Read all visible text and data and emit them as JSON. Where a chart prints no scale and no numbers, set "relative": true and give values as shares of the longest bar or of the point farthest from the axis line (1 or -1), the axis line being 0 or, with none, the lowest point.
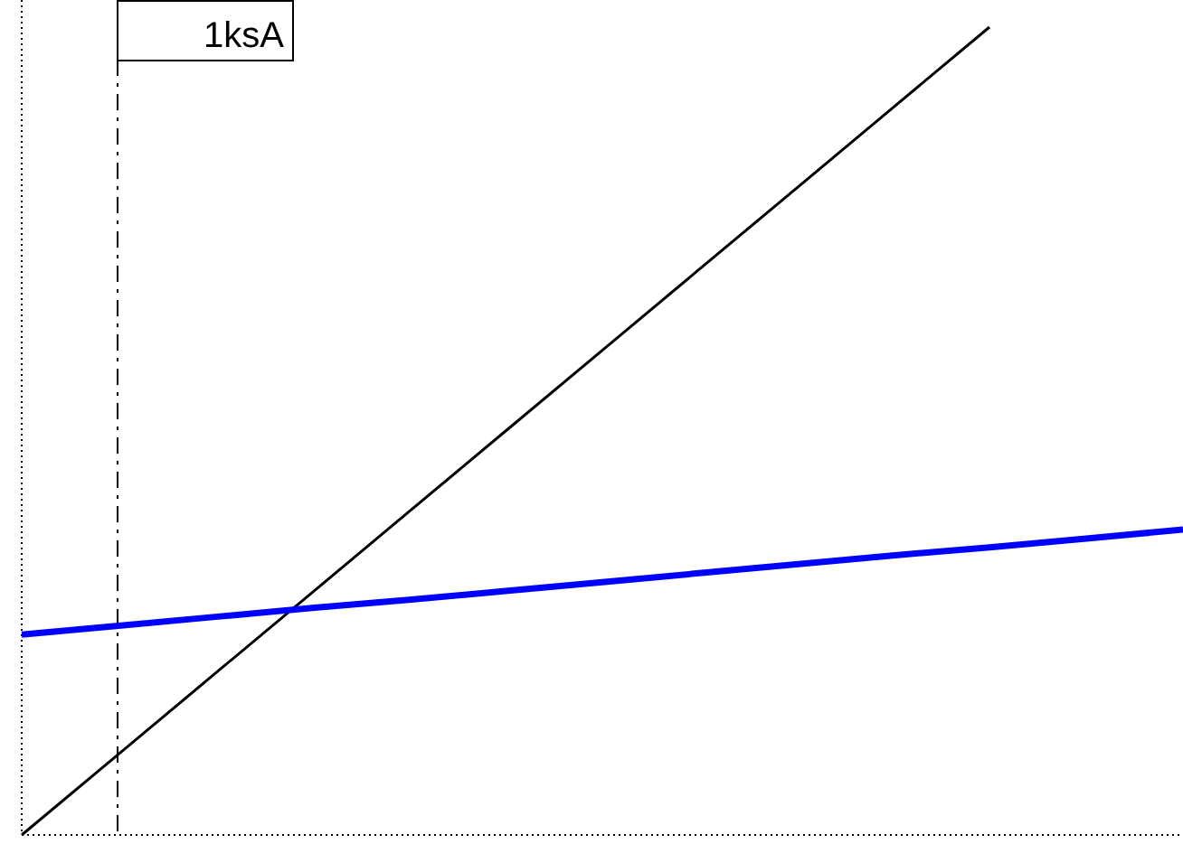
{
  "chart_data": {
    "type": "line",
    "relative": true,
    "line_style": "solid",
    "categories": [
      null,
      null,
      null,
      null,
      null,
      null,
      null,
      null,
      null,
      null,
      null,
      null,
      null
    ],
    "series": [
      {
        "color": "#000000",
        "values": [
          0,
          0.1,
          0.2,
          0.3,
          0.4,
          0.5,
          0.6,
          0.7,
          0.8,
          0.9,
          1,
          null,
          null
        ]
      },
      {
        "color": "#0000ff",
        "values": [
          0.248,
          0.259,
          0.27,
          0.281,
          0.291,
          0.302,
          0.313,
          0.324,
          0.335,
          0.346,
          0.356,
          0.367,
          0.378
        ]
      }
    ],
    "annotations": [
      "1ksA"
    ]
  }
}
